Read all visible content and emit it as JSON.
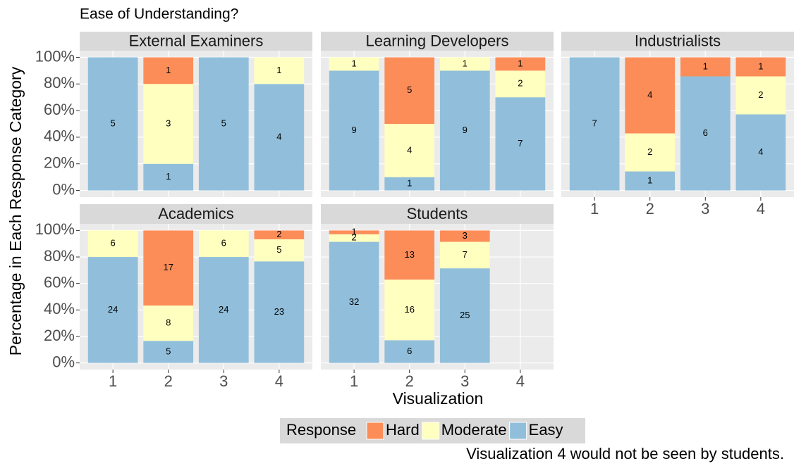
{
  "chart_data": {
    "type": "bar",
    "stacking": "percent",
    "title": "Ease of Understanding?",
    "ylabel": "Percentage in Each Response Category",
    "xlabel": "Visualization",
    "legend_title": "Response",
    "caption": "Visualization 4 would not be seen by students.",
    "categories": [
      1,
      2,
      3,
      4
    ],
    "ylim": [
      0,
      100
    ],
    "yticks": [
      {
        "value": 0,
        "label": "0%"
      },
      {
        "value": 20,
        "label": "20%"
      },
      {
        "value": 40,
        "label": "40%"
      },
      {
        "value": 60,
        "label": "60%"
      },
      {
        "value": 80,
        "label": "80%"
      },
      {
        "value": 100,
        "label": "100%"
      }
    ],
    "grid": true,
    "legend_position": "bottom",
    "series": [
      {
        "name": "Hard",
        "color": "#fc8d59"
      },
      {
        "name": "Moderate",
        "color": "#ffffbf"
      },
      {
        "name": "Easy",
        "color": "#91bfdb"
      }
    ],
    "facets": [
      {
        "title": "External Examiners",
        "values": [
          [
            null,
            1,
            null,
            null
          ],
          [
            null,
            3,
            null,
            1
          ],
          [
            5,
            1,
            5,
            4
          ]
        ]
      },
      {
        "title": "Learning Developers",
        "values": [
          [
            null,
            5,
            null,
            1
          ],
          [
            1,
            4,
            1,
            2
          ],
          [
            9,
            1,
            9,
            7
          ]
        ]
      },
      {
        "title": "Industrialists",
        "values": [
          [
            null,
            4,
            1,
            1
          ],
          [
            null,
            2,
            null,
            2
          ],
          [
            7,
            1,
            6,
            4
          ]
        ]
      },
      {
        "title": "Academics",
        "values": [
          [
            null,
            17,
            null,
            2
          ],
          [
            6,
            8,
            6,
            5
          ],
          [
            24,
            5,
            24,
            23
          ]
        ]
      },
      {
        "title": "Students",
        "values": [
          [
            1,
            13,
            3,
            null
          ],
          [
            2,
            16,
            7,
            null
          ],
          [
            32,
            6,
            25,
            null
          ]
        ]
      }
    ]
  }
}
